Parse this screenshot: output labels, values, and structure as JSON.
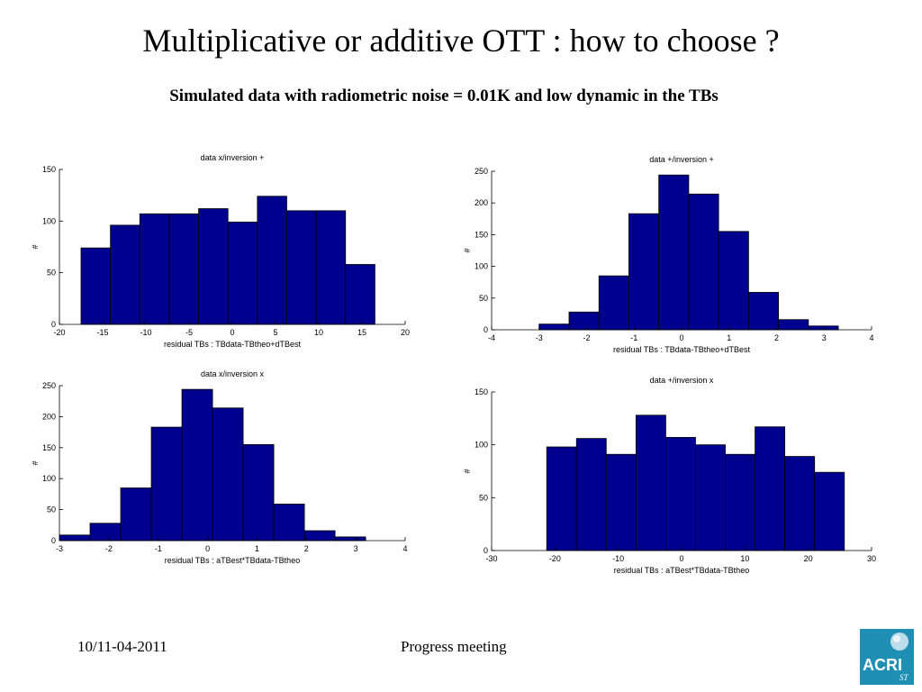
{
  "page": {
    "title": "Multiplicative or additive OTT : how to choose ?",
    "subtitle": "Simulated data with radiometric noise = 0.01K and low dynamic in the TBs"
  },
  "footer": {
    "date": "10/11-04-2011",
    "meeting": "Progress meeting"
  },
  "logo": {
    "text": "ACRI",
    "subtext": "ST"
  },
  "colors": {
    "bar_fill": "#00008f",
    "bar_edge": "#000000",
    "logo_bg": "#1f8fb4"
  },
  "chart_data": [
    {
      "type": "bar",
      "title": "data x/inversion +",
      "xlabel": "residual TBs : TBdata-TBtheo+dTBest",
      "ylabel": "#",
      "xlim": [
        -20,
        20
      ],
      "ylim": [
        0,
        150
      ],
      "xticks": [
        -20,
        -15,
        -10,
        -5,
        0,
        5,
        10,
        15,
        20
      ],
      "yticks": [
        0,
        50,
        100,
        150
      ],
      "bin_edges": [
        -17.5,
        -14.1,
        -10.7,
        -7.3,
        -3.9,
        -0.5,
        2.9,
        6.3,
        9.7,
        13.1,
        16.5
      ],
      "values": [
        74,
        96,
        107,
        107,
        112,
        99,
        124,
        110,
        110,
        58
      ]
    },
    {
      "type": "bar",
      "title": "data +/inversion +",
      "xlabel": "residual TBs : TBdata-TBtheo+dTBest",
      "ylabel": "#",
      "xlim": [
        -4,
        4
      ],
      "ylim": [
        0,
        250
      ],
      "xticks": [
        -4,
        -3,
        -2,
        -1,
        0,
        1,
        2,
        3,
        4
      ],
      "yticks": [
        0,
        50,
        100,
        150,
        200,
        250
      ],
      "bin_edges": [
        -3.0,
        -2.37,
        -1.74,
        -1.11,
        -0.48,
        0.15,
        0.78,
        1.41,
        2.04,
        2.67,
        3.3
      ],
      "values": [
        9,
        28,
        85,
        183,
        244,
        214,
        155,
        59,
        16,
        6
      ]
    },
    {
      "type": "bar",
      "title": "data x/inversion x",
      "xlabel": "residual TBs : aTBest*TBdata-TBtheo",
      "ylabel": "#",
      "xlim": [
        -3,
        4
      ],
      "ylim": [
        0,
        250
      ],
      "xticks": [
        -3,
        -2,
        -1,
        0,
        1,
        2,
        3,
        4
      ],
      "yticks": [
        0,
        50,
        100,
        150,
        200,
        250
      ],
      "bin_edges": [
        -3.0,
        -2.38,
        -1.76,
        -1.14,
        -0.52,
        0.1,
        0.72,
        1.34,
        1.96,
        2.58,
        3.2
      ],
      "values": [
        9,
        28,
        85,
        183,
        244,
        214,
        155,
        59,
        16,
        6
      ]
    },
    {
      "type": "bar",
      "title": "data +/inversion x",
      "xlabel": "residual TBs : aTBest*TBdata-TBtheo",
      "ylabel": "#",
      "xlim": [
        -30,
        30
      ],
      "ylim": [
        0,
        150
      ],
      "xticks": [
        -30,
        -20,
        -10,
        0,
        10,
        20,
        30
      ],
      "yticks": [
        0,
        50,
        100,
        150
      ],
      "bin_edges": [
        -21.3,
        -16.6,
        -11.9,
        -7.2,
        -2.5,
        2.2,
        6.9,
        11.6,
        16.3,
        21.0,
        25.7
      ],
      "values": [
        98,
        106,
        91,
        128,
        107,
        100,
        91,
        117,
        89,
        74
      ]
    }
  ]
}
